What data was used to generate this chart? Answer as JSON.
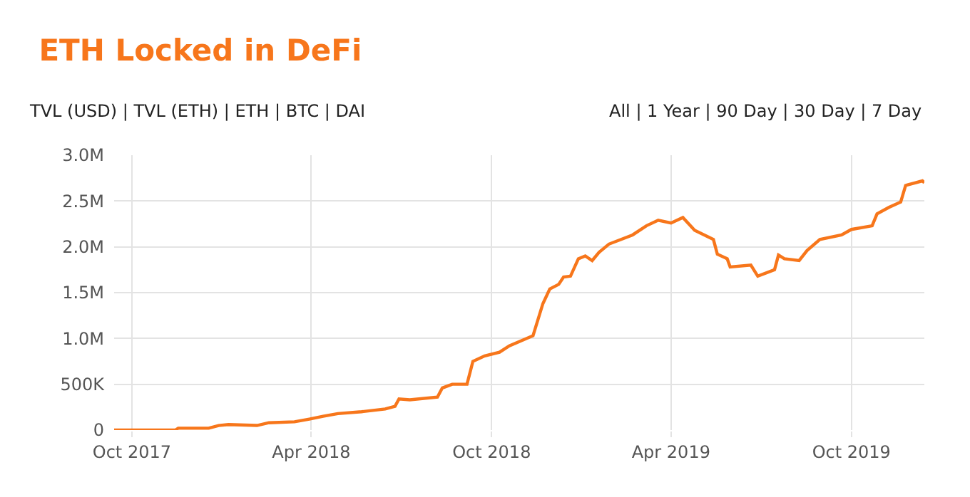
{
  "chart_data": {
    "type": "line",
    "title": "ETH Locked in DeFi",
    "annotations": [
      "TVL (USD) | TVL (ETH) | ETH | BTC | DAI",
      "All | 1 Year | 90 Day | 30 Day | 7 Day"
    ],
    "x": [
      "2017-09-13",
      "2017-11-14",
      "2017-11-17",
      "2017-12-18",
      "2017-12-28",
      "2018-01-07",
      "2018-02-05",
      "2018-02-17",
      "2018-03-15",
      "2018-03-30",
      "2018-04-13",
      "2018-04-28",
      "2018-05-22",
      "2018-06-15",
      "2018-06-25",
      "2018-06-29",
      "2018-07-10",
      "2018-08-07",
      "2018-08-12",
      "2018-08-22",
      "2018-09-06",
      "2018-09-12",
      "2018-09-24",
      "2018-10-09",
      "2018-10-19",
      "2018-11-12",
      "2018-11-22",
      "2018-11-29",
      "2018-12-08",
      "2018-12-13",
      "2018-12-20",
      "2018-12-28",
      "2019-01-04",
      "2019-01-11",
      "2019-01-18",
      "2019-01-28",
      "2019-02-21",
      "2019-03-07",
      "2019-03-19",
      "2019-04-01",
      "2019-04-13",
      "2019-04-25",
      "2019-05-14",
      "2019-05-18",
      "2019-05-28",
      "2019-05-31",
      "2019-06-21",
      "2019-06-28",
      "2019-07-15",
      "2019-07-19",
      "2019-07-25",
      "2019-08-09",
      "2019-08-17",
      "2019-08-30",
      "2019-09-21",
      "2019-10-01",
      "2019-10-22",
      "2019-10-27",
      "2019-11-08",
      "2019-11-20",
      "2019-11-25",
      "2019-12-12",
      "2019-12-14"
    ],
    "series": [
      {
        "color": "#f7761b",
        "values": [
          0,
          0,
          20000,
          20000,
          50000,
          60000,
          50000,
          80000,
          90000,
          120000,
          150000,
          180000,
          200000,
          230000,
          260000,
          340000,
          330000,
          360000,
          460000,
          500000,
          500000,
          750000,
          810000,
          850000,
          920000,
          1030000,
          1380000,
          1540000,
          1590000,
          1670000,
          1680000,
          1870000,
          1900000,
          1850000,
          1940000,
          2030000,
          2130000,
          2230000,
          2290000,
          2260000,
          2320000,
          2180000,
          2080000,
          1920000,
          1870000,
          1780000,
          1800000,
          1680000,
          1750000,
          1910000,
          1870000,
          1850000,
          1960000,
          2080000,
          2130000,
          2190000,
          2230000,
          2360000,
          2430000,
          2490000,
          2670000,
          2720000,
          2700000
        ]
      }
    ],
    "xlim": [
      "2017-09-13",
      "2019-12-14"
    ],
    "xticks": [
      {
        "value": "2017-10-01",
        "label": "Oct 2017"
      },
      {
        "value": "2018-04-01",
        "label": "Apr 2018"
      },
      {
        "value": "2018-10-01",
        "label": "Oct 2018"
      },
      {
        "value": "2019-04-01",
        "label": "Apr 2019"
      },
      {
        "value": "2019-10-01",
        "label": "Oct 2019"
      }
    ],
    "ylim": [
      0,
      3000000
    ],
    "yticks": [
      0,
      {
        "value": 500000,
        "label": "500K"
      },
      {
        "value": 1000000,
        "label": "1.0M"
      },
      {
        "value": 1500000,
        "label": "1.5M"
      },
      {
        "value": 2000000,
        "label": "2.0M"
      },
      {
        "value": 2500000,
        "label": "2.5M"
      },
      {
        "value": 3000000,
        "label": "3.0M"
      }
    ],
    "grid": true,
    "marker": "none",
    "line_style": "solid"
  }
}
